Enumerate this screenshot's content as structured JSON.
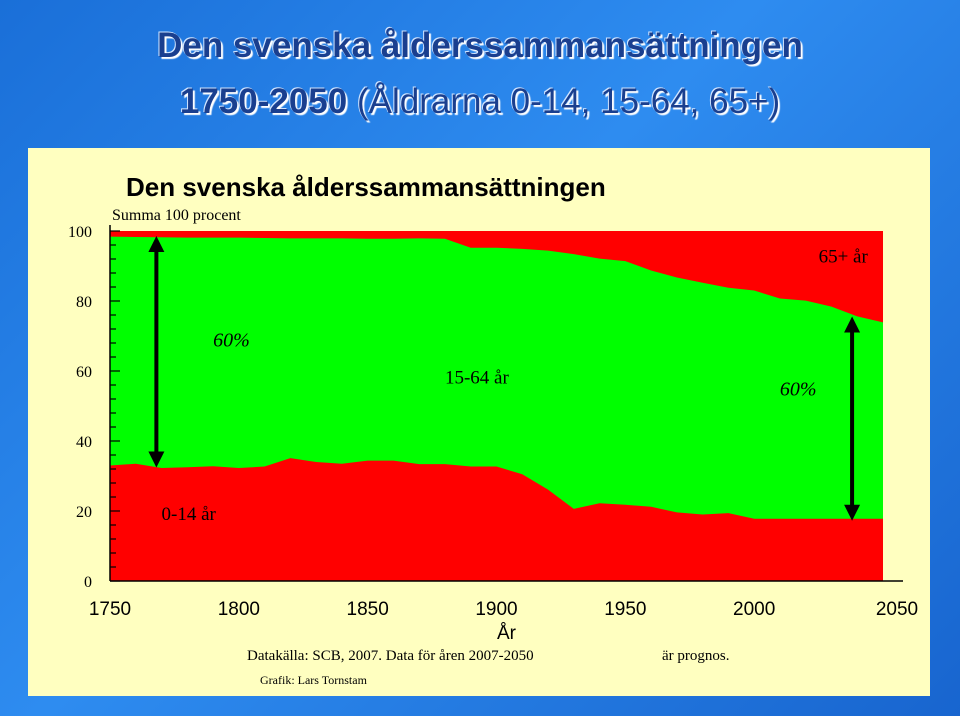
{
  "slide": {
    "title_line1": "Den svenska ålderssammansättningen",
    "title_line2_bold": "1750-2050",
    "title_line2_rest": " (Åldrarna 0-14, 15-64, 65+)"
  },
  "footer": {
    "source_a": "Datakälla: SCB, 2007. Data för åren 2007-2050",
    "source_b": "är prognos.",
    "credit": "Grafik: Lars Tornstam"
  },
  "colors": {
    "red": "#ff0000",
    "green": "#00ff00",
    "panel": "#ffffc0",
    "arrow": "#000000"
  },
  "chart_data": {
    "type": "area",
    "stacked": true,
    "title": "Den svenska ålderssammansättningen",
    "subtitle": "Summa 100 procent",
    "xlabel": "År",
    "ylabel": "",
    "xlim": [
      1750,
      2050
    ],
    "ylim": [
      0,
      100
    ],
    "x_ticks": [
      1750,
      1800,
      1850,
      1900,
      1950,
      2000,
      2050
    ],
    "y_ticks": [
      0,
      20,
      40,
      60,
      80,
      100
    ],
    "x": [
      1750,
      1760,
      1770,
      1780,
      1790,
      1800,
      1810,
      1820,
      1830,
      1840,
      1850,
      1860,
      1870,
      1880,
      1890,
      1900,
      1910,
      1920,
      1930,
      1940,
      1950,
      1960,
      1970,
      1980,
      1990,
      2000,
      2010,
      2020,
      2030,
      2040,
      2050
    ],
    "series": [
      {
        "name": "0-14 år",
        "values": [
          33,
          33.5,
          32.3,
          32.5,
          32.8,
          32.3,
          32.7,
          35.1,
          34,
          33.5,
          34.4,
          34.4,
          33.4,
          33.4,
          32.7,
          32.7,
          30.5,
          26.1,
          20.6,
          22.2,
          21.8,
          21.2,
          19.6,
          19,
          19.4,
          17.8,
          17.8,
          17.8,
          17.8,
          17.8,
          17.8
        ]
      },
      {
        "name": "15-64 år",
        "values": [
          65.4,
          64.8,
          65.9,
          65.6,
          65.3,
          65.8,
          65.3,
          62.8,
          63.9,
          64.4,
          63.4,
          63.4,
          64.5,
          64.4,
          62.5,
          62.5,
          64.4,
          68.3,
          72.8,
          69.9,
          69.6,
          67.5,
          67.1,
          66.2,
          64.4,
          65.2,
          62.9,
          62.3,
          60.6,
          57.8,
          56.1
        ]
      },
      {
        "name": "65+ år",
        "values": [
          1.6,
          1.7,
          1.8,
          1.9,
          1.9,
          1.9,
          2,
          2.1,
          2.1,
          2.1,
          2.2,
          2.2,
          2.1,
          2.2,
          4.8,
          4.8,
          5.1,
          5.6,
          6.6,
          7.9,
          8.6,
          11.3,
          13.3,
          14.8,
          16.2,
          17,
          19.3,
          19.9,
          21.6,
          24.4,
          26.1
        ]
      }
    ],
    "annotations": [
      {
        "text": "60%",
        "x": 1790,
        "y": 67
      },
      {
        "text": "15-64 år",
        "x": 1880,
        "y": 56.5
      },
      {
        "text": "60%",
        "x": 2010,
        "y": 53
      },
      {
        "text": "65+ år",
        "x": 2025,
        "y": 91
      },
      {
        "text": "0-14 år",
        "x": 1770,
        "y": 17.5
      }
    ],
    "range_arrows": [
      {
        "x": 1768,
        "from": 33,
        "to": 98
      },
      {
        "x": 2038,
        "from": 17.8,
        "to": 75
      }
    ],
    "grid": false,
    "legend": "none"
  }
}
